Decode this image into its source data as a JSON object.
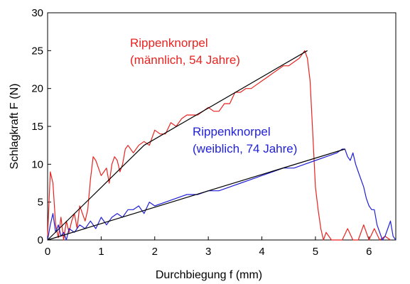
{
  "chart_data": {
    "type": "line",
    "xlabel": "Durchbiegung f (mm)",
    "ylabel": "Schlagkraft F (N)",
    "xlim": [
      0,
      6.5
    ],
    "ylim": [
      0,
      30
    ],
    "x_ticks": [
      "0",
      "1",
      "2",
      "3",
      "4",
      "5",
      "6"
    ],
    "y_ticks": [
      "0",
      "5",
      "10",
      "15",
      "20",
      "25",
      "30"
    ],
    "grid": false,
    "legend": "none",
    "annotations": [
      {
        "series": "red",
        "lines": [
          "Rippenknorpel",
          "(männlich, 54 Jahre)"
        ]
      },
      {
        "series": "blue",
        "lines": [
          "Rippenknorpel",
          "(weiblich, 74 Jahre)"
        ]
      }
    ],
    "series": [
      {
        "color": "#e8231f",
        "x": [
          0,
          0.05,
          0.1,
          0.15,
          0.2,
          0.25,
          0.3,
          0.35,
          0.4,
          0.45,
          0.5,
          0.55,
          0.6,
          0.65,
          0.7,
          0.75,
          0.8,
          0.85,
          0.9,
          0.95,
          1.0,
          1.05,
          1.1,
          1.15,
          1.2,
          1.25,
          1.3,
          1.35,
          1.4,
          1.45,
          1.5,
          1.6,
          1.7,
          1.8,
          1.9,
          2.0,
          2.1,
          2.2,
          2.3,
          2.4,
          2.5,
          2.6,
          2.7,
          2.8,
          2.9,
          3.0,
          3.1,
          3.2,
          3.3,
          3.4,
          3.5,
          3.6,
          3.7,
          3.8,
          3.9,
          4.0,
          4.1,
          4.2,
          4.3,
          4.4,
          4.5,
          4.6,
          4.7,
          4.75,
          4.8,
          4.85,
          4.9,
          4.95,
          5.0,
          5.05,
          5.1,
          5.15,
          5.2,
          5.3,
          5.4,
          5.5,
          5.6,
          5.7,
          5.8,
          5.9,
          6.0,
          6.1,
          6.2,
          6.3,
          6.4
        ],
        "y": [
          0.5,
          9,
          7.5,
          2,
          0.3,
          3,
          0,
          2.5,
          1,
          2.5,
          3.5,
          1.5,
          4.5,
          3.5,
          2.5,
          4,
          8,
          11,
          10.5,
          9.5,
          8.5,
          9,
          9.5,
          7.5,
          10,
          11,
          10.5,
          9,
          10,
          12,
          12.5,
          11.5,
          12.5,
          13,
          12.5,
          14.5,
          14,
          14,
          15.5,
          15,
          16,
          16.5,
          16.5,
          16.5,
          17,
          17.5,
          17,
          17,
          18,
          18,
          19.5,
          19.5,
          20,
          20,
          20.5,
          21,
          21.5,
          22,
          22.5,
          23,
          23,
          23.5,
          24,
          24.5,
          25,
          24,
          21,
          14,
          7,
          4,
          1.5,
          0,
          1,
          0,
          0,
          0,
          1.5,
          0,
          0,
          2,
          0,
          1.5,
          0,
          0.5,
          0
        ]
      },
      {
        "color": "#1f1fd6",
        "x": [
          0,
          0.05,
          0.1,
          0.15,
          0.2,
          0.25,
          0.3,
          0.35,
          0.4,
          0.5,
          0.6,
          0.7,
          0.8,
          0.9,
          1.0,
          1.1,
          1.2,
          1.3,
          1.4,
          1.5,
          1.6,
          1.7,
          1.8,
          1.9,
          2.0,
          2.2,
          2.4,
          2.6,
          2.8,
          3.0,
          3.2,
          3.4,
          3.6,
          3.8,
          4.0,
          4.2,
          4.4,
          4.6,
          4.8,
          5.0,
          5.2,
          5.4,
          5.5,
          5.55,
          5.6,
          5.65,
          5.7,
          5.75,
          5.8,
          5.85,
          5.9,
          5.95,
          6.0,
          6.05,
          6.1,
          6.15,
          6.2,
          6.25,
          6.3,
          6.35,
          6.4,
          6.45,
          6.5
        ],
        "y": [
          0,
          2,
          3.5,
          1,
          2,
          0.5,
          1,
          0,
          1.5,
          1,
          2,
          1.5,
          2.5,
          1.5,
          3,
          2,
          3,
          3.5,
          3,
          4,
          4,
          4.5,
          3.5,
          5,
          4.5,
          5,
          5.5,
          6,
          6,
          6.5,
          6.5,
          7,
          7.5,
          8,
          8.5,
          9,
          9.5,
          9.5,
          10,
          10.5,
          11,
          11.5,
          12,
          12,
          11,
          10.5,
          11.5,
          10,
          9,
          8,
          7,
          5.5,
          4.5,
          4,
          4,
          2,
          1,
          0,
          0.5,
          1.5,
          2.5,
          0.5,
          0
        ]
      },
      {
        "color": "#000000",
        "x": [
          0,
          1.8,
          4.85
        ],
        "y": [
          0,
          12.5,
          25
        ]
      },
      {
        "color": "#000000",
        "x": [
          0,
          5.55
        ],
        "y": [
          0,
          12
        ]
      }
    ]
  }
}
